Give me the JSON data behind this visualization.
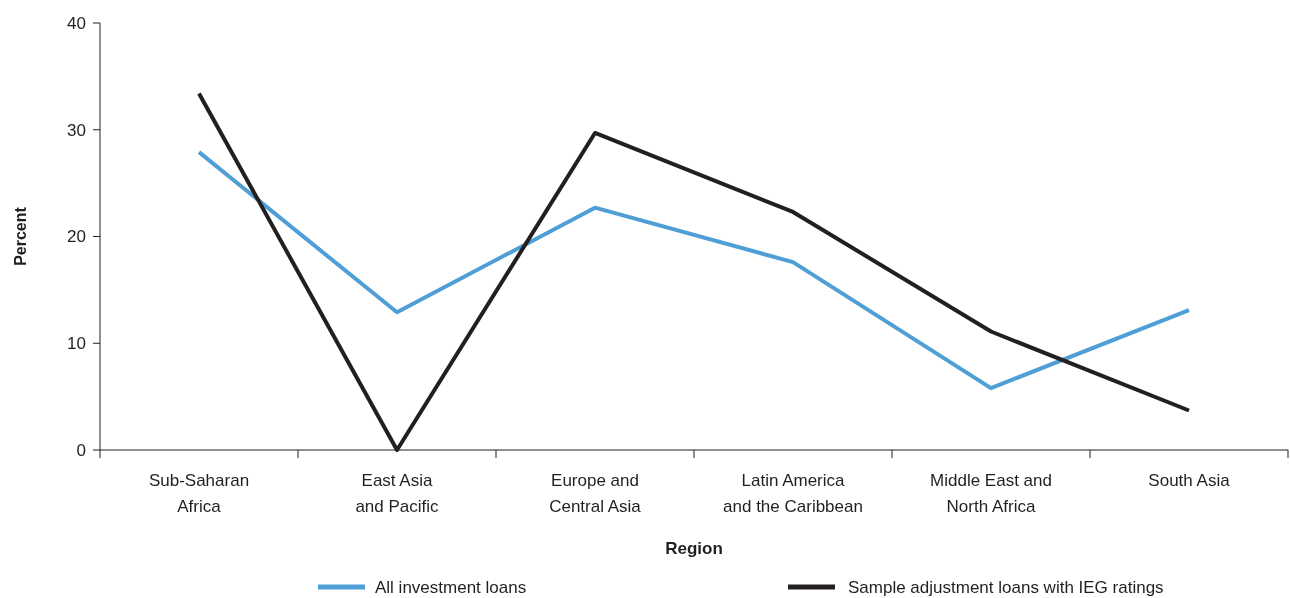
{
  "chart_data": {
    "type": "line",
    "xlabel": "Region",
    "ylabel": "Percent",
    "categories": [
      "Sub-Saharan Africa",
      "East Asia and Pacific",
      "Europe and Central Asia",
      "Latin America and the Caribbean",
      "Middle East and North Africa",
      "South Asia"
    ],
    "series": [
      {
        "name": "All investment loans",
        "color": "#4f9fd6",
        "values": [
          27.9,
          12.9,
          22.7,
          17.6,
          5.8,
          13.1
        ]
      },
      {
        "name": "Sample adjustment loans with IEG ratings",
        "color": "#231f20",
        "values": [
          33.4,
          0,
          29.7,
          22.3,
          11.1,
          3.7
        ]
      }
    ],
    "ylim": [
      0,
      40
    ],
    "yticks": [
      0,
      10,
      20,
      30,
      40
    ],
    "grid": false,
    "legend": "bottom",
    "marker": "none",
    "line_style": "solid"
  }
}
